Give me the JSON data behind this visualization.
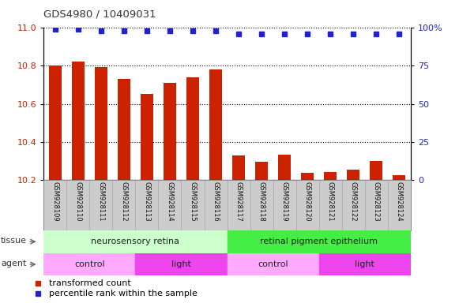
{
  "title": "GDS4980 / 10409031",
  "samples": [
    "GSM928109",
    "GSM928110",
    "GSM928111",
    "GSM928112",
    "GSM928113",
    "GSM928114",
    "GSM928115",
    "GSM928116",
    "GSM928117",
    "GSM928118",
    "GSM928119",
    "GSM928120",
    "GSM928121",
    "GSM928122",
    "GSM928123",
    "GSM928124"
  ],
  "bar_values": [
    10.8,
    10.82,
    10.79,
    10.73,
    10.65,
    10.71,
    10.74,
    10.78,
    10.33,
    10.295,
    10.335,
    10.24,
    10.245,
    10.255,
    10.3,
    10.225
  ],
  "percentile_values": [
    98.5,
    98.5,
    97.5,
    97.5,
    97.5,
    97.5,
    97.5,
    97.5,
    95.5,
    95.5,
    95.5,
    95.5,
    95.5,
    95.5,
    95.5,
    95.5
  ],
  "ylim_left": [
    10.2,
    11.0
  ],
  "ylim_right": [
    0,
    100
  ],
  "yticks_left": [
    10.2,
    10.4,
    10.6,
    10.8,
    11.0
  ],
  "yticks_right": [
    0,
    25,
    50,
    75,
    100
  ],
  "bar_color": "#cc2200",
  "dot_color": "#2222cc",
  "background_color": "#ffffff",
  "grid_color": "#000000",
  "tissue_groups": [
    {
      "label": "neurosensory retina",
      "start": 0,
      "end": 8,
      "color": "#ccffcc"
    },
    {
      "label": "retinal pigment epithelium",
      "start": 8,
      "end": 16,
      "color": "#44ee44"
    }
  ],
  "agent_groups": [
    {
      "label": "control",
      "start": 0,
      "end": 4,
      "color": "#ffaaff"
    },
    {
      "label": "light",
      "start": 4,
      "end": 8,
      "color": "#ee44ee"
    },
    {
      "label": "control",
      "start": 8,
      "end": 12,
      "color": "#ffaaff"
    },
    {
      "label": "light",
      "start": 12,
      "end": 16,
      "color": "#ee44ee"
    }
  ],
  "legend_items": [
    {
      "label": "transformed count",
      "color": "#cc2200"
    },
    {
      "label": "percentile rank within the sample",
      "color": "#2222cc"
    }
  ],
  "xlabels_bg": "#cccccc",
  "xlabels_border": "#aaaaaa"
}
